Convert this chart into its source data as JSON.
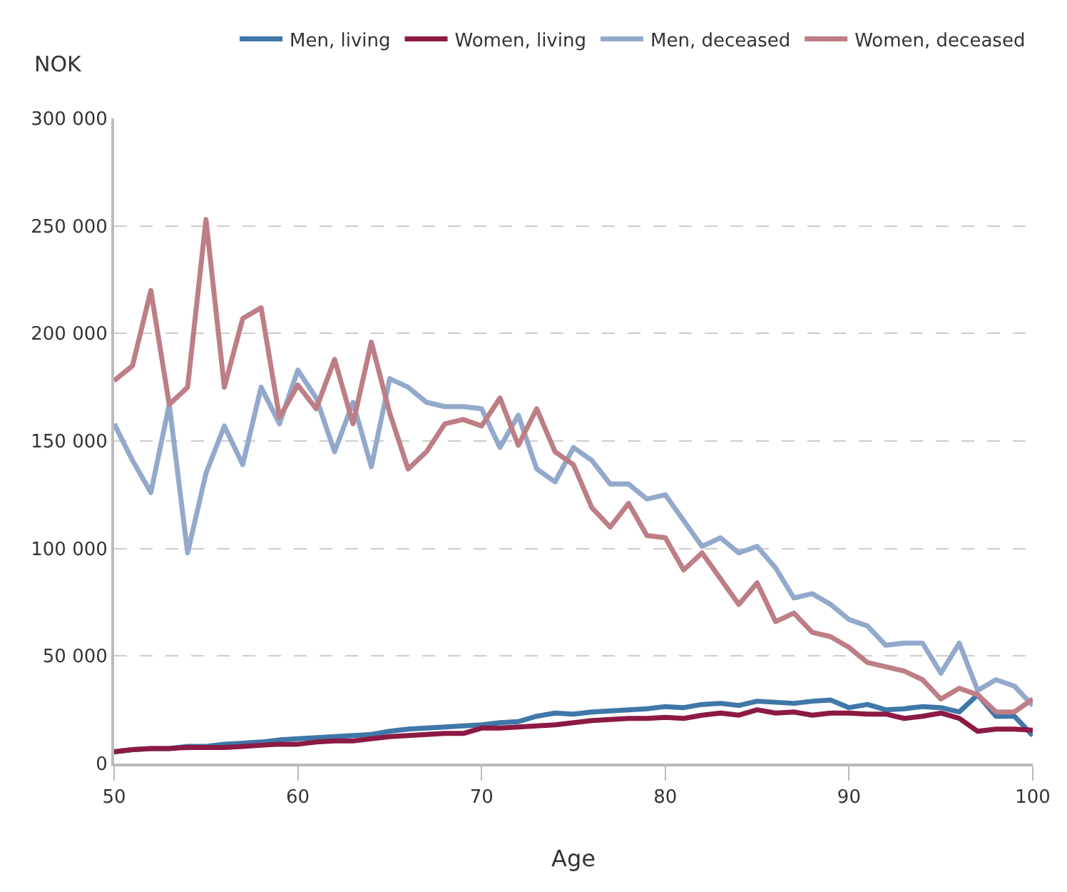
{
  "chart_data": {
    "type": "line",
    "xlabel": "Age",
    "ylabel": "NOK",
    "x": [
      50,
      51,
      52,
      53,
      54,
      55,
      56,
      57,
      58,
      59,
      60,
      61,
      62,
      63,
      64,
      65,
      66,
      67,
      68,
      69,
      70,
      71,
      72,
      73,
      74,
      75,
      76,
      77,
      78,
      79,
      80,
      81,
      82,
      83,
      84,
      85,
      86,
      87,
      88,
      89,
      90,
      91,
      92,
      93,
      94,
      95,
      96,
      97,
      98,
      99,
      100
    ],
    "series": [
      {
        "name": "Men, living",
        "color": "#3f77a8",
        "values": [
          5500,
          6500,
          7000,
          7000,
          8000,
          8000,
          9000,
          9500,
          10000,
          11000,
          11500,
          12000,
          12500,
          13000,
          13500,
          15000,
          16000,
          16500,
          17000,
          17500,
          18000,
          19000,
          19500,
          22000,
          23500,
          23000,
          24000,
          24500,
          25000,
          25500,
          26500,
          26000,
          27500,
          28000,
          27000,
          29000,
          28500,
          28000,
          29000,
          29500,
          26000,
          27500,
          25000,
          25500,
          26500,
          26000,
          24000,
          32000,
          22000,
          22000,
          13000
        ]
      },
      {
        "name": "Women, living",
        "color": "#8c1a45",
        "values": [
          5500,
          6500,
          7000,
          7000,
          7500,
          7500,
          7500,
          8000,
          8500,
          9000,
          9000,
          10000,
          10500,
          10500,
          11500,
          12500,
          13000,
          13500,
          14000,
          14000,
          16500,
          16500,
          17000,
          17500,
          18000,
          19000,
          20000,
          20500,
          21000,
          21000,
          21500,
          21000,
          22500,
          23500,
          22500,
          25000,
          23500,
          24000,
          22500,
          23500,
          23500,
          23000,
          23000,
          21000,
          22000,
          23500,
          21000,
          15000,
          16000,
          16000,
          15500
        ]
      },
      {
        "name": "Men, deceased",
        "color": "#93a9cc",
        "values": [
          158000,
          141000,
          126000,
          167000,
          98000,
          135000,
          157000,
          139000,
          175000,
          158000,
          183000,
          170000,
          145000,
          168000,
          138000,
          179000,
          175000,
          168000,
          166000,
          166000,
          165000,
          147000,
          162000,
          137000,
          131000,
          147000,
          141000,
          130000,
          130000,
          123000,
          125000,
          113000,
          101000,
          105000,
          98000,
          101000,
          91000,
          77000,
          79000,
          74000,
          67000,
          64000,
          55000,
          56000,
          56000,
          42000,
          56000,
          34000,
          39000,
          36000,
          27000
        ]
      },
      {
        "name": "Women, deceased",
        "color": "#bd7e85",
        "values": [
          178000,
          185000,
          220000,
          167000,
          175000,
          253000,
          175000,
          207000,
          212000,
          161000,
          176000,
          165000,
          188000,
          158000,
          196000,
          163000,
          137000,
          145000,
          158000,
          160000,
          157000,
          170000,
          148000,
          165000,
          145000,
          139000,
          119000,
          110000,
          121000,
          106000,
          105000,
          90000,
          98000,
          86000,
          74000,
          84000,
          66000,
          70000,
          61000,
          59000,
          54000,
          47000,
          45000,
          43000,
          39000,
          30000,
          35000,
          32000,
          24000,
          24000,
          30000
        ]
      }
    ],
    "xlim": [
      50,
      100
    ],
    "xticks": [
      50,
      60,
      70,
      80,
      90,
      100
    ],
    "ylim": [
      0,
      300000
    ],
    "yticks": [
      0,
      {
        "value": 50000,
        "label": "50 000"
      },
      {
        "value": 100000,
        "label": "100 000"
      },
      {
        "value": 150000,
        "label": "150 000"
      },
      {
        "value": 200000,
        "label": "200 000"
      },
      {
        "value": 250000,
        "label": "250 000"
      },
      {
        "value": 300000,
        "label": "300 000"
      }
    ],
    "grid": "y",
    "legend": "top right",
    "marker": "none",
    "line_style": "solid"
  }
}
